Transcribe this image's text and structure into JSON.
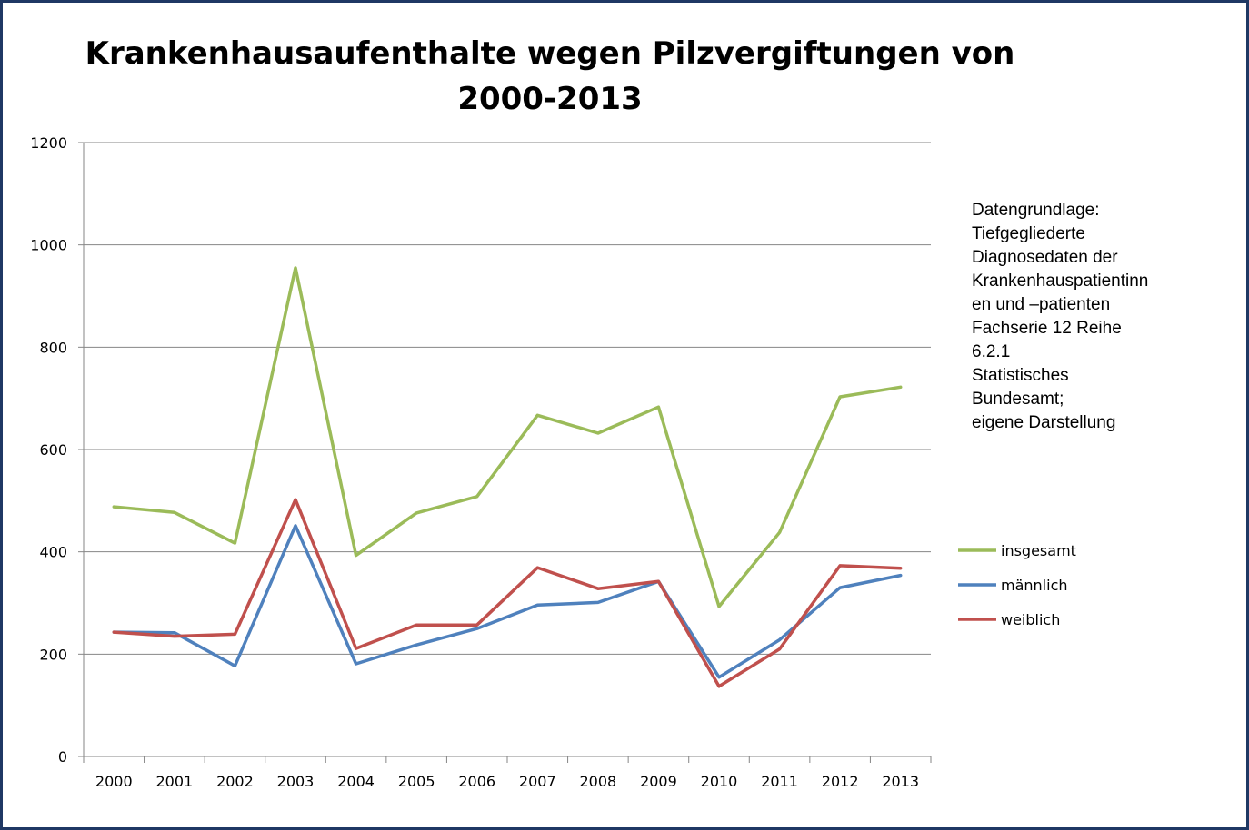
{
  "chart_data": {
    "type": "line",
    "title": "Krankenhausaufenthalte wegen Pilzvergiftungen von 2000-2013",
    "title_lines": [
      "Krankenhausaufenthalte wegen Pilzvergiftungen von",
      "2000-2013"
    ],
    "xlabel": "",
    "ylabel": "",
    "categories": [
      "2000",
      "2001",
      "2002",
      "2003",
      "2004",
      "2005",
      "2006",
      "2007",
      "2008",
      "2009",
      "2010",
      "2011",
      "2012",
      "2013"
    ],
    "ylim": [
      0,
      1200
    ],
    "yticks": [
      0,
      200,
      400,
      600,
      800,
      1000,
      1200
    ],
    "grid": true,
    "legend_position": "right",
    "series": [
      {
        "name": "insgesamt",
        "color": "#9bbb59",
        "values": [
          488,
          477,
          417,
          955,
          393,
          476,
          508,
          667,
          632,
          683,
          293,
          438,
          703,
          722
        ]
      },
      {
        "name": "männlich",
        "color": "#4f81bd",
        "values": [
          243,
          242,
          177,
          451,
          181,
          218,
          250,
          296,
          301,
          342,
          155,
          228,
          330,
          354
        ]
      },
      {
        "name": "weiblich",
        "color": "#c0504d",
        "values": [
          243,
          235,
          239,
          502,
          211,
          257,
          257,
          369,
          328,
          342,
          137,
          210,
          373,
          368
        ]
      }
    ],
    "annotation_lines": [
      "Datengrundlage:",
      "Tiefgegliederte",
      "Diagnosedaten der",
      "Krankenhauspatientinn",
      "en und –patienten",
      "Fachserie 12 Reihe",
      "6.2.1",
      "Statistisches",
      "Bundesamt;",
      "eigene Darstellung"
    ]
  },
  "colors": {
    "frame": "#1f3864",
    "grid": "#868686",
    "axis": "#868686"
  }
}
